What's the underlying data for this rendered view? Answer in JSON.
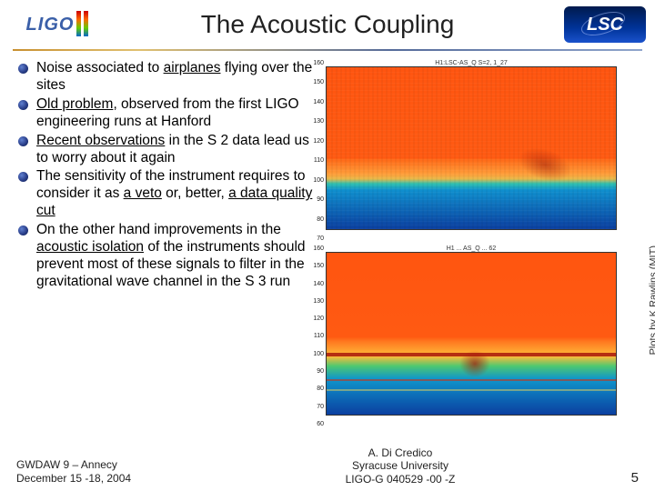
{
  "header": {
    "title": "The Acoustic Coupling",
    "ligo_label": "LIGO",
    "lsc_label": "LSC"
  },
  "bullets": [
    {
      "pre": "Noise associated to ",
      "u": "airplanes",
      "post": " flying over the sites"
    },
    {
      "pre": "",
      "u": "Old problem",
      "post": ", observed from the first LIGO engineering runs at Hanford"
    },
    {
      "pre": "",
      "u": "Recent observations",
      "post": " in the S 2 data lead us to worry about it again"
    },
    {
      "pre": "The sensitivity of the instrument requires to consider it as ",
      "u": "a veto",
      "post": " or, better, ",
      "u2": "a data quality cut"
    },
    {
      "pre": "On the other hand improvements in the ",
      "u": "acoustic isolation",
      "post": " of the instruments should prevent most of these signals to filter in the gravitational wave channel in the S 3 run"
    }
  ],
  "figures": {
    "credit": "Plots by K.Rawlins (MIT)",
    "a": {
      "title": "H1:LSC-AS_Q S=2, 1_27",
      "yticks": [
        "160",
        "150",
        "140",
        "130",
        "120",
        "110",
        "100",
        "90",
        "80",
        "70"
      ]
    },
    "b": {
      "title": "H1 ... AS_Q ... 62",
      "yticks": [
        "160",
        "150",
        "140",
        "130",
        "120",
        "110",
        "100",
        "90",
        "80",
        "70",
        "60"
      ]
    }
  },
  "footer": {
    "left_line1": "GWDAW 9 – Annecy",
    "left_line2": "December 15 -18, 2004",
    "center_line1": "A. Di Credico",
    "center_line2": "Syracuse University",
    "center_line3": "LIGO-G 040529 -00 -Z",
    "page": "5"
  },
  "colors": {
    "title_color": "#222222",
    "accent_blue": "#3a5fa8",
    "rule_start": "#c89030",
    "rule_end": "#8fa5cc"
  }
}
